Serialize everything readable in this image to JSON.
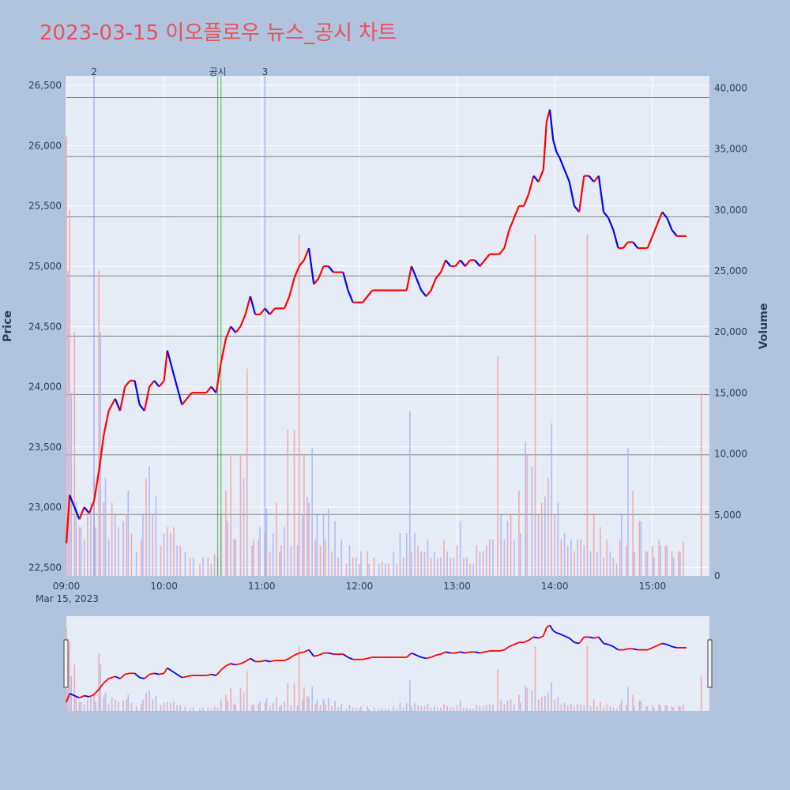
{
  "chart_data": {
    "type": "candlestick",
    "title": "2023-03-15 이오플로우 뉴스_공시 차트",
    "date_label": "Mar 15, 2023",
    "y_left_label": "Price",
    "y_right_label": "Volume",
    "x_ticks": [
      "09:00",
      "10:00",
      "11:00",
      "12:00",
      "13:00",
      "14:00",
      "15:00"
    ],
    "x_range_minutes": [
      540,
      935
    ],
    "price_ticks": [
      "22,500",
      "23,000",
      "23,500",
      "24,000",
      "24,500",
      "25,000",
      "25,500",
      "26,000",
      "26,500"
    ],
    "price_tick_values": [
      22500,
      23000,
      23500,
      24000,
      24500,
      25000,
      25500,
      26000,
      26500
    ],
    "price_range": [
      22430,
      26580
    ],
    "volume_ticks": [
      "0",
      "5,000",
      "10,000",
      "15,000",
      "20,000",
      "25,000",
      "30,000",
      "35,000",
      "40,000"
    ],
    "volume_tick_values": [
      0,
      5000,
      10000,
      15000,
      20000,
      25000,
      30000,
      35000,
      40000
    ],
    "volume_range": [
      0,
      41000
    ],
    "up_color": "#ff0000",
    "down_color": "#0000ff",
    "price_path": [
      [
        540,
        22700
      ],
      [
        542,
        23100
      ],
      [
        545,
        23000
      ],
      [
        548,
        22900
      ],
      [
        551,
        23000
      ],
      [
        554,
        22950
      ],
      [
        557,
        23050
      ],
      [
        560,
        23300
      ],
      [
        563,
        23600
      ],
      [
        566,
        23800
      ],
      [
        570,
        23900
      ],
      [
        573,
        23800
      ],
      [
        576,
        24000
      ],
      [
        579,
        24050
      ],
      [
        582,
        24050
      ],
      [
        585,
        23850
      ],
      [
        588,
        23800
      ],
      [
        591,
        24000
      ],
      [
        594,
        24050
      ],
      [
        597,
        24000
      ],
      [
        600,
        24050
      ],
      [
        602,
        24300
      ],
      [
        605,
        24150
      ],
      [
        608,
        24000
      ],
      [
        611,
        23850
      ],
      [
        614,
        23900
      ],
      [
        617,
        23950
      ],
      [
        620,
        23950
      ],
      [
        623,
        23950
      ],
      [
        626,
        23950
      ],
      [
        629,
        24000
      ],
      [
        632,
        23950
      ],
      [
        635,
        24200
      ],
      [
        638,
        24400
      ],
      [
        641,
        24500
      ],
      [
        644,
        24450
      ],
      [
        647,
        24500
      ],
      [
        650,
        24600
      ],
      [
        653,
        24750
      ],
      [
        656,
        24600
      ],
      [
        659,
        24600
      ],
      [
        662,
        24650
      ],
      [
        665,
        24600
      ],
      [
        668,
        24650
      ],
      [
        671,
        24650
      ],
      [
        674,
        24650
      ],
      [
        677,
        24750
      ],
      [
        680,
        24900
      ],
      [
        683,
        25000
      ],
      [
        686,
        25050
      ],
      [
        689,
        25150
      ],
      [
        692,
        24850
      ],
      [
        695,
        24900
      ],
      [
        698,
        25000
      ],
      [
        701,
        25000
      ],
      [
        704,
        24950
      ],
      [
        707,
        24950
      ],
      [
        710,
        24950
      ],
      [
        713,
        24800
      ],
      [
        716,
        24700
      ],
      [
        719,
        24700
      ],
      [
        722,
        24700
      ],
      [
        725,
        24750
      ],
      [
        728,
        24800
      ],
      [
        731,
        24800
      ],
      [
        734,
        24800
      ],
      [
        737,
        24800
      ],
      [
        740,
        24800
      ],
      [
        743,
        24800
      ],
      [
        746,
        24800
      ],
      [
        749,
        24800
      ],
      [
        752,
        25000
      ],
      [
        755,
        24900
      ],
      [
        758,
        24800
      ],
      [
        761,
        24750
      ],
      [
        764,
        24800
      ],
      [
        767,
        24900
      ],
      [
        770,
        24950
      ],
      [
        773,
        25050
      ],
      [
        776,
        25000
      ],
      [
        779,
        25000
      ],
      [
        782,
        25050
      ],
      [
        785,
        25000
      ],
      [
        788,
        25050
      ],
      [
        791,
        25050
      ],
      [
        794,
        25000
      ],
      [
        797,
        25050
      ],
      [
        800,
        25100
      ],
      [
        803,
        25100
      ],
      [
        806,
        25100
      ],
      [
        809,
        25150
      ],
      [
        812,
        25300
      ],
      [
        815,
        25400
      ],
      [
        818,
        25500
      ],
      [
        821,
        25500
      ],
      [
        824,
        25600
      ],
      [
        827,
        25750
      ],
      [
        830,
        25700
      ],
      [
        833,
        25800
      ],
      [
        835,
        26200
      ],
      [
        837,
        26300
      ],
      [
        839,
        26050
      ],
      [
        841,
        25950
      ],
      [
        843,
        25900
      ],
      [
        846,
        25800
      ],
      [
        849,
        25700
      ],
      [
        852,
        25500
      ],
      [
        855,
        25450
      ],
      [
        858,
        25750
      ],
      [
        861,
        25750
      ],
      [
        864,
        25700
      ],
      [
        867,
        25750
      ],
      [
        870,
        25450
      ],
      [
        873,
        25400
      ],
      [
        876,
        25300
      ],
      [
        879,
        25150
      ],
      [
        882,
        25150
      ],
      [
        885,
        25200
      ],
      [
        888,
        25200
      ],
      [
        891,
        25150
      ],
      [
        894,
        25150
      ],
      [
        897,
        25150
      ],
      [
        900,
        25250
      ],
      [
        903,
        25350
      ],
      [
        906,
        25450
      ],
      [
        909,
        25400
      ],
      [
        912,
        25300
      ],
      [
        915,
        25250
      ],
      [
        918,
        25250
      ],
      [
        921,
        25250
      ]
    ],
    "up_volume_bars": [
      [
        540,
        36000
      ],
      [
        542,
        30000
      ],
      [
        545,
        20000
      ],
      [
        548,
        4000
      ],
      [
        553,
        5000
      ],
      [
        557,
        8000
      ],
      [
        560,
        25000
      ],
      [
        563,
        6000
      ],
      [
        568,
        6000
      ],
      [
        572,
        4000
      ],
      [
        577,
        5000
      ],
      [
        580,
        3500
      ],
      [
        586,
        3000
      ],
      [
        589,
        8000
      ],
      [
        593,
        5000
      ],
      [
        598,
        2500
      ],
      [
        602,
        4000
      ],
      [
        606,
        4000
      ],
      [
        610,
        2500
      ],
      [
        616,
        1500
      ],
      [
        622,
        1000
      ],
      [
        627,
        1500
      ],
      [
        631,
        1800
      ],
      [
        635,
        5000
      ],
      [
        638,
        7000
      ],
      [
        641,
        10000
      ],
      [
        644,
        3000
      ],
      [
        647,
        10000
      ],
      [
        651,
        17000
      ],
      [
        655,
        3000
      ],
      [
        658,
        3000
      ],
      [
        662,
        3500
      ],
      [
        665,
        2000
      ],
      [
        669,
        6000
      ],
      [
        672,
        2500
      ],
      [
        676,
        12000
      ],
      [
        680,
        12000
      ],
      [
        683,
        28000
      ],
      [
        686,
        10000
      ],
      [
        689,
        6000
      ],
      [
        693,
        3000
      ],
      [
        696,
        2500
      ],
      [
        699,
        3000
      ],
      [
        703,
        2000
      ],
      [
        707,
        1500
      ],
      [
        712,
        1000
      ],
      [
        716,
        1500
      ],
      [
        720,
        1000
      ],
      [
        725,
        2000
      ],
      [
        729,
        1500
      ],
      [
        734,
        1200
      ],
      [
        738,
        1000
      ],
      [
        743,
        1000
      ],
      [
        747,
        1500
      ],
      [
        752,
        2000
      ],
      [
        756,
        2500
      ],
      [
        760,
        2000
      ],
      [
        764,
        1500
      ],
      [
        768,
        1500
      ],
      [
        772,
        3000
      ],
      [
        776,
        1500
      ],
      [
        780,
        2500
      ],
      [
        784,
        1500
      ],
      [
        788,
        1000
      ],
      [
        792,
        2500
      ],
      [
        796,
        2000
      ],
      [
        800,
        3000
      ],
      [
        805,
        18000
      ],
      [
        809,
        3000
      ],
      [
        813,
        5000
      ],
      [
        818,
        7000
      ],
      [
        823,
        10000
      ],
      [
        828,
        28000
      ],
      [
        832,
        6000
      ],
      [
        836,
        8000
      ],
      [
        840,
        5000
      ],
      [
        844,
        3000
      ],
      [
        848,
        2500
      ],
      [
        852,
        2000
      ],
      [
        856,
        3000
      ],
      [
        860,
        28000
      ],
      [
        864,
        5000
      ],
      [
        868,
        4000
      ],
      [
        872,
        3000
      ],
      [
        876,
        1500
      ],
      [
        880,
        3000
      ],
      [
        884,
        2500
      ],
      [
        888,
        7000
      ],
      [
        892,
        4500
      ],
      [
        896,
        2000
      ],
      [
        900,
        2500
      ],
      [
        904,
        3000
      ],
      [
        908,
        2500
      ],
      [
        912,
        2000
      ],
      [
        916,
        2000
      ],
      [
        919,
        2800
      ],
      [
        930,
        15000
      ]
    ],
    "down_volume_bars": [
      [
        541,
        25000
      ],
      [
        543,
        15000
      ],
      [
        546,
        6000
      ],
      [
        549,
        4000
      ],
      [
        551,
        3000
      ],
      [
        555,
        6000
      ],
      [
        558,
        4000
      ],
      [
        561,
        20000
      ],
      [
        564,
        8000
      ],
      [
        566,
        3000
      ],
      [
        570,
        5000
      ],
      [
        575,
        4500
      ],
      [
        578,
        7000
      ],
      [
        583,
        2000
      ],
      [
        587,
        5000
      ],
      [
        591,
        9000
      ],
      [
        595,
        6500
      ],
      [
        600,
        3500
      ],
      [
        604,
        3500
      ],
      [
        608,
        2500
      ],
      [
        613,
        2000
      ],
      [
        618,
        1500
      ],
      [
        624,
        1500
      ],
      [
        629,
        1000
      ],
      [
        633,
        1500
      ],
      [
        639,
        4500
      ],
      [
        643,
        3000
      ],
      [
        649,
        8000
      ],
      [
        654,
        2500
      ],
      [
        659,
        4000
      ],
      [
        663,
        5500
      ],
      [
        667,
        3500
      ],
      [
        671,
        2000
      ],
      [
        674,
        4000
      ],
      [
        678,
        2500
      ],
      [
        682,
        2500
      ],
      [
        685,
        5000
      ],
      [
        688,
        6500
      ],
      [
        691,
        10500
      ],
      [
        694,
        5000
      ],
      [
        698,
        5000
      ],
      [
        701,
        5500
      ],
      [
        705,
        4500
      ],
      [
        709,
        3000
      ],
      [
        714,
        2500
      ],
      [
        718,
        1500
      ],
      [
        721,
        2000
      ],
      [
        726,
        1000
      ],
      [
        732,
        1000
      ],
      [
        736,
        1000
      ],
      [
        741,
        2000
      ],
      [
        745,
        3500
      ],
      [
        749,
        3500
      ],
      [
        751,
        13500
      ],
      [
        754,
        3500
      ],
      [
        758,
        2000
      ],
      [
        762,
        3000
      ],
      [
        766,
        2000
      ],
      [
        770,
        1500
      ],
      [
        774,
        2000
      ],
      [
        778,
        1500
      ],
      [
        782,
        4500
      ],
      [
        786,
        1500
      ],
      [
        790,
        1000
      ],
      [
        794,
        2000
      ],
      [
        798,
        2500
      ],
      [
        802,
        3000
      ],
      [
        807,
        5000
      ],
      [
        811,
        4500
      ],
      [
        815,
        3000
      ],
      [
        819,
        3500
      ],
      [
        822,
        11000
      ],
      [
        826,
        9000
      ],
      [
        830,
        5000
      ],
      [
        834,
        6500
      ],
      [
        838,
        12500
      ],
      [
        842,
        6000
      ],
      [
        846,
        3500
      ],
      [
        850,
        3000
      ],
      [
        854,
        3000
      ],
      [
        858,
        2500
      ],
      [
        862,
        2000
      ],
      [
        866,
        2000
      ],
      [
        870,
        1500
      ],
      [
        874,
        2000
      ],
      [
        878,
        1000
      ],
      [
        881,
        5000
      ],
      [
        885,
        10500
      ],
      [
        889,
        2000
      ],
      [
        893,
        4500
      ],
      [
        897,
        2000
      ],
      [
        901,
        1500
      ],
      [
        905,
        2500
      ],
      [
        909,
        2500
      ],
      [
        913,
        1500
      ],
      [
        917,
        2000
      ]
    ],
    "marker_lines": [
      {
        "label": "2",
        "minute": 557,
        "color": "#6f86e8"
      },
      {
        "label": "공시",
        "minute": 633,
        "color": "#2ca02c"
      },
      {
        "label": "",
        "minute": 635,
        "color": "#2ca02c"
      },
      {
        "label": "3",
        "minute": 662,
        "color": "#6f86e8"
      }
    ],
    "hlines": [
      22940,
      23435,
      23935,
      24420,
      24920,
      25410,
      25910,
      26400
    ],
    "legend": "none",
    "grid": true
  }
}
